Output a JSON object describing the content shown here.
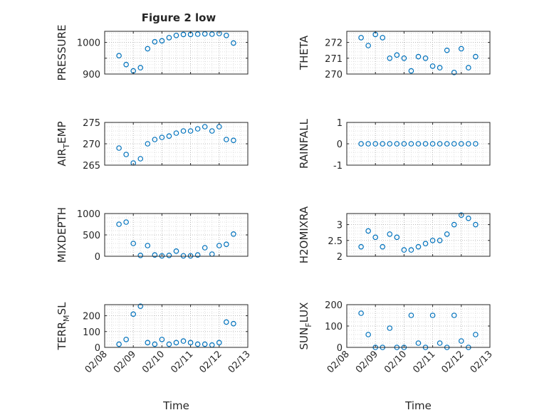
{
  "figure": {
    "title": "Figure 2 low"
  },
  "colors": {
    "marker": "#0072BD",
    "axis": "#262626",
    "grid": "#b0b0b0",
    "background": "#ffffff"
  },
  "chart_data": [
    {
      "id": "pressure",
      "type": "scatter",
      "marker": "open-circle",
      "title": "Figure 2 low",
      "ylabel": "PRESSURE",
      "ylabel_sub": "",
      "ylabel_suffix": "",
      "xlabel": "",
      "xlim": [
        "2019-02-08",
        "2019-02-13"
      ],
      "ylim": [
        900,
        1035
      ],
      "yticks": [
        900,
        950,
        1000
      ],
      "ytick_labels": [
        "900",
        "",
        "1000"
      ],
      "xticks": [
        "02/08",
        "02/09",
        "02/10",
        "02/11",
        "02/12",
        "02/13"
      ],
      "show_xtick_labels": false,
      "grid": "on, dotted, with minor grid",
      "x": [
        "2019-02-08 12:00",
        "2019-02-08 18:00",
        "2019-02-09 00:00",
        "2019-02-09 06:00",
        "2019-02-09 12:00",
        "2019-02-09 18:00",
        "2019-02-10 00:00",
        "2019-02-10 06:00",
        "2019-02-10 12:00",
        "2019-02-10 18:00",
        "2019-02-11 00:00",
        "2019-02-11 06:00",
        "2019-02-11 12:00",
        "2019-02-11 18:00",
        "2019-02-12 00:00",
        "2019-02-12 06:00",
        "2019-02-12 12:00"
      ],
      "y": [
        958,
        930,
        910,
        920,
        980,
        1002,
        1005,
        1015,
        1022,
        1025,
        1025,
        1026,
        1027,
        1026,
        1028,
        1022,
        998
      ]
    },
    {
      "id": "theta",
      "type": "scatter",
      "marker": "open-circle",
      "title": "",
      "ylabel": "THETA",
      "ylabel_sub": "",
      "ylabel_suffix": "",
      "xlabel": "",
      "xlim": [
        "2019-02-08",
        "2019-02-13"
      ],
      "ylim": [
        270,
        272.7
      ],
      "yticks": [
        270,
        271,
        272
      ],
      "ytick_labels": [
        "270",
        "271",
        "272"
      ],
      "xticks": [
        "02/08",
        "02/09",
        "02/10",
        "02/11",
        "02/12",
        "02/13"
      ],
      "show_xtick_labels": false,
      "grid": "on, dotted, with minor grid",
      "x": [
        "2019-02-08 12:00",
        "2019-02-08 18:00",
        "2019-02-09 00:00",
        "2019-02-09 06:00",
        "2019-02-09 12:00",
        "2019-02-09 18:00",
        "2019-02-10 00:00",
        "2019-02-10 06:00",
        "2019-02-10 12:00",
        "2019-02-10 18:00",
        "2019-02-11 00:00",
        "2019-02-11 06:00",
        "2019-02-11 12:00",
        "2019-02-11 18:00",
        "2019-02-12 00:00",
        "2019-02-12 06:00",
        "2019-02-12 12:00"
      ],
      "y": [
        272.3,
        271.8,
        272.5,
        272.3,
        271.0,
        271.2,
        271.0,
        270.2,
        271.1,
        271.0,
        270.5,
        270.4,
        271.5,
        270.1,
        271.6,
        270.4,
        271.1
      ]
    },
    {
      "id": "air-temp",
      "type": "scatter",
      "marker": "open-circle",
      "title": "",
      "ylabel": "AIR",
      "ylabel_sub": "T",
      "ylabel_suffix": "EMP",
      "xlabel": "",
      "xlim": [
        "2019-02-08",
        "2019-02-13"
      ],
      "ylim": [
        265,
        275
      ],
      "yticks": [
        265,
        270,
        275
      ],
      "ytick_labels": [
        "265",
        "270",
        "275"
      ],
      "xticks": [
        "02/08",
        "02/09",
        "02/10",
        "02/11",
        "02/12",
        "02/13"
      ],
      "show_xtick_labels": false,
      "grid": "on, dotted, with minor grid",
      "x": [
        "2019-02-08 12:00",
        "2019-02-08 18:00",
        "2019-02-09 00:00",
        "2019-02-09 06:00",
        "2019-02-09 12:00",
        "2019-02-09 18:00",
        "2019-02-10 00:00",
        "2019-02-10 06:00",
        "2019-02-10 12:00",
        "2019-02-10 18:00",
        "2019-02-11 00:00",
        "2019-02-11 06:00",
        "2019-02-11 12:00",
        "2019-02-11 18:00",
        "2019-02-12 00:00",
        "2019-02-12 06:00",
        "2019-02-12 12:00"
      ],
      "y": [
        269,
        267.5,
        265.5,
        266.5,
        270,
        271,
        271.5,
        271.8,
        272.5,
        273,
        273,
        273.5,
        274,
        273,
        274,
        271,
        270.8
      ]
    },
    {
      "id": "rainfall",
      "type": "scatter",
      "marker": "open-circle",
      "title": "",
      "ylabel": "RAINFALL",
      "ylabel_sub": "",
      "ylabel_suffix": "",
      "xlabel": "",
      "xlim": [
        "2019-02-08",
        "2019-02-13"
      ],
      "ylim": [
        -1,
        1
      ],
      "yticks": [
        -1,
        0,
        1
      ],
      "ytick_labels": [
        "-1",
        "0",
        "1"
      ],
      "xticks": [
        "02/08",
        "02/09",
        "02/10",
        "02/11",
        "02/12",
        "02/13"
      ],
      "show_xtick_labels": false,
      "grid": "on, dotted, with minor grid",
      "x": [
        "2019-02-08 12:00",
        "2019-02-08 18:00",
        "2019-02-09 00:00",
        "2019-02-09 06:00",
        "2019-02-09 12:00",
        "2019-02-09 18:00",
        "2019-02-10 00:00",
        "2019-02-10 06:00",
        "2019-02-10 12:00",
        "2019-02-10 18:00",
        "2019-02-11 00:00",
        "2019-02-11 06:00",
        "2019-02-11 12:00",
        "2019-02-11 18:00",
        "2019-02-12 00:00",
        "2019-02-12 06:00",
        "2019-02-12 12:00"
      ],
      "y": [
        0,
        0,
        0,
        0,
        0,
        0,
        0,
        0,
        0,
        0,
        0,
        0,
        0,
        0,
        0,
        0,
        0
      ]
    },
    {
      "id": "mixdepth",
      "type": "scatter",
      "marker": "open-circle",
      "title": "",
      "ylabel": "MIXDEPTH",
      "ylabel_sub": "",
      "ylabel_suffix": "",
      "xlabel": "",
      "xlim": [
        "2019-02-08",
        "2019-02-13"
      ],
      "ylim": [
        0,
        1000
      ],
      "yticks": [
        0,
        500,
        1000
      ],
      "ytick_labels": [
        "0",
        "500",
        "1000"
      ],
      "xticks": [
        "02/08",
        "02/09",
        "02/10",
        "02/11",
        "02/12",
        "02/13"
      ],
      "show_xtick_labels": false,
      "grid": "on, dotted, with minor grid",
      "x": [
        "2019-02-08 12:00",
        "2019-02-08 18:00",
        "2019-02-09 00:00",
        "2019-02-09 06:00",
        "2019-02-09 12:00",
        "2019-02-09 18:00",
        "2019-02-10 00:00",
        "2019-02-10 06:00",
        "2019-02-10 12:00",
        "2019-02-10 18:00",
        "2019-02-11 00:00",
        "2019-02-11 06:00",
        "2019-02-11 12:00",
        "2019-02-11 18:00",
        "2019-02-12 00:00",
        "2019-02-12 06:00",
        "2019-02-12 12:00"
      ],
      "y": [
        750,
        800,
        300,
        20,
        250,
        30,
        10,
        20,
        120,
        10,
        10,
        30,
        200,
        50,
        250,
        280,
        520
      ]
    },
    {
      "id": "h2omixra",
      "type": "scatter",
      "marker": "open-circle",
      "title": "",
      "ylabel": "H2OMIXRA",
      "ylabel_sub": "",
      "ylabel_suffix": "",
      "xlabel": "",
      "xlim": [
        "2019-02-08",
        "2019-02-13"
      ],
      "ylim": [
        2,
        3.35
      ],
      "yticks": [
        2,
        2.5,
        3
      ],
      "ytick_labels": [
        "2",
        "2.5",
        "3"
      ],
      "xticks": [
        "02/08",
        "02/09",
        "02/10",
        "02/11",
        "02/12",
        "02/13"
      ],
      "show_xtick_labels": false,
      "grid": "on, dotted, with minor grid",
      "x": [
        "2019-02-08 12:00",
        "2019-02-08 18:00",
        "2019-02-09 00:00",
        "2019-02-09 06:00",
        "2019-02-09 12:00",
        "2019-02-09 18:00",
        "2019-02-10 00:00",
        "2019-02-10 06:00",
        "2019-02-10 12:00",
        "2019-02-10 18:00",
        "2019-02-11 00:00",
        "2019-02-11 06:00",
        "2019-02-11 12:00",
        "2019-02-11 18:00",
        "2019-02-12 00:00",
        "2019-02-12 06:00",
        "2019-02-12 12:00"
      ],
      "y": [
        2.3,
        2.8,
        2.6,
        2.3,
        2.7,
        2.6,
        2.2,
        2.2,
        2.3,
        2.4,
        2.5,
        2.5,
        2.7,
        3.0,
        3.3,
        3.2,
        3.0
      ]
    },
    {
      "id": "terrain-msl",
      "type": "scatter",
      "marker": "open-circle",
      "title": "",
      "ylabel": "TERR",
      "ylabel_sub": "M",
      "ylabel_suffix": "SL",
      "xlabel": "Time",
      "xlim": [
        "2019-02-08",
        "2019-02-13"
      ],
      "ylim": [
        0,
        270
      ],
      "yticks": [
        0,
        100,
        200
      ],
      "ytick_labels": [
        "0",
        "100",
        "200"
      ],
      "xticks": [
        "02/08",
        "02/09",
        "02/10",
        "02/11",
        "02/12",
        "02/13"
      ],
      "show_xtick_labels": true,
      "grid": "on, dotted, with minor grid",
      "x": [
        "2019-02-08 12:00",
        "2019-02-08 18:00",
        "2019-02-09 00:00",
        "2019-02-09 06:00",
        "2019-02-09 12:00",
        "2019-02-09 18:00",
        "2019-02-10 00:00",
        "2019-02-10 06:00",
        "2019-02-10 12:00",
        "2019-02-10 18:00",
        "2019-02-11 00:00",
        "2019-02-11 06:00",
        "2019-02-11 12:00",
        "2019-02-11 18:00",
        "2019-02-12 00:00",
        "2019-02-12 06:00",
        "2019-02-12 12:00"
      ],
      "y": [
        20,
        50,
        210,
        260,
        30,
        20,
        50,
        20,
        30,
        40,
        30,
        20,
        20,
        15,
        30,
        160,
        150
      ]
    },
    {
      "id": "sun-flux",
      "type": "scatter",
      "marker": "open-circle",
      "title": "",
      "ylabel": "SUN",
      "ylabel_sub": "F",
      "ylabel_suffix": "LUX",
      "xlabel": "Time",
      "xlim": [
        "2019-02-08",
        "2019-02-13"
      ],
      "ylim": [
        0,
        200
      ],
      "yticks": [
        0,
        100,
        200
      ],
      "ytick_labels": [
        "0",
        "100",
        "200"
      ],
      "xticks": [
        "02/08",
        "02/09",
        "02/10",
        "02/11",
        "02/12",
        "02/13"
      ],
      "show_xtick_labels": true,
      "grid": "on, dotted, with minor grid",
      "x": [
        "2019-02-08 12:00",
        "2019-02-08 18:00",
        "2019-02-09 00:00",
        "2019-02-09 06:00",
        "2019-02-09 12:00",
        "2019-02-09 18:00",
        "2019-02-10 00:00",
        "2019-02-10 06:00",
        "2019-02-10 12:00",
        "2019-02-10 18:00",
        "2019-02-11 00:00",
        "2019-02-11 06:00",
        "2019-02-11 12:00",
        "2019-02-11 18:00",
        "2019-02-12 00:00",
        "2019-02-12 06:00",
        "2019-02-12 12:00"
      ],
      "y": [
        160,
        60,
        0,
        0,
        90,
        0,
        0,
        150,
        20,
        0,
        150,
        20,
        0,
        150,
        30,
        0,
        60
      ]
    }
  ]
}
